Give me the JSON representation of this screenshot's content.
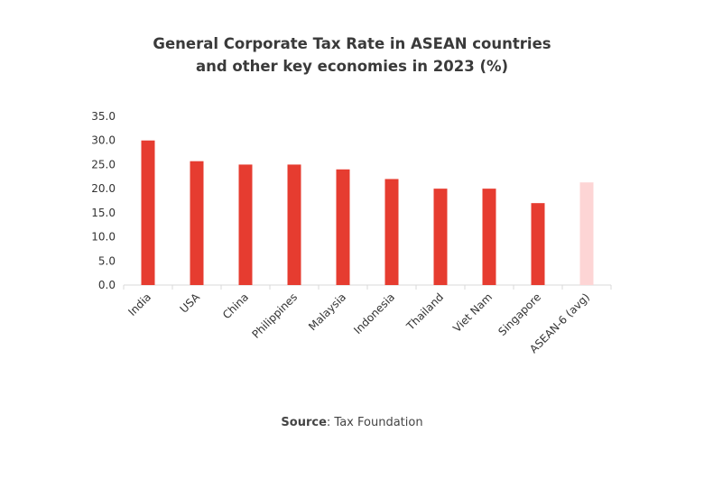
{
  "chart_data": {
    "type": "bar",
    "title_line1": "General Corporate Tax Rate in ASEAN countries",
    "title_line2": "and other key economies in 2023 (%)",
    "categories": [
      "India",
      "USA",
      "China",
      "Philippines",
      "Malaysia",
      "Indonesia",
      "Thailand",
      "Viet Nam",
      "Singapore",
      "ASEAN-6 (avg)"
    ],
    "values": [
      30.0,
      25.7,
      25.0,
      25.0,
      24.0,
      22.0,
      20.0,
      20.0,
      17.0,
      21.3
    ],
    "colors": [
      "#e63c30",
      "#e63c30",
      "#e63c30",
      "#e63c30",
      "#e63c30",
      "#e63c30",
      "#e63c30",
      "#e63c30",
      "#e63c30",
      "#fdd5d5"
    ],
    "ylim": [
      0,
      35
    ],
    "yticks": [
      "0.0",
      "5.0",
      "10.0",
      "15.0",
      "20.0",
      "25.0",
      "30.0",
      "35.0"
    ],
    "grid": false,
    "xlabel": "",
    "ylabel": ""
  },
  "source": {
    "label": "Source",
    "text": ": Tax Foundation"
  }
}
